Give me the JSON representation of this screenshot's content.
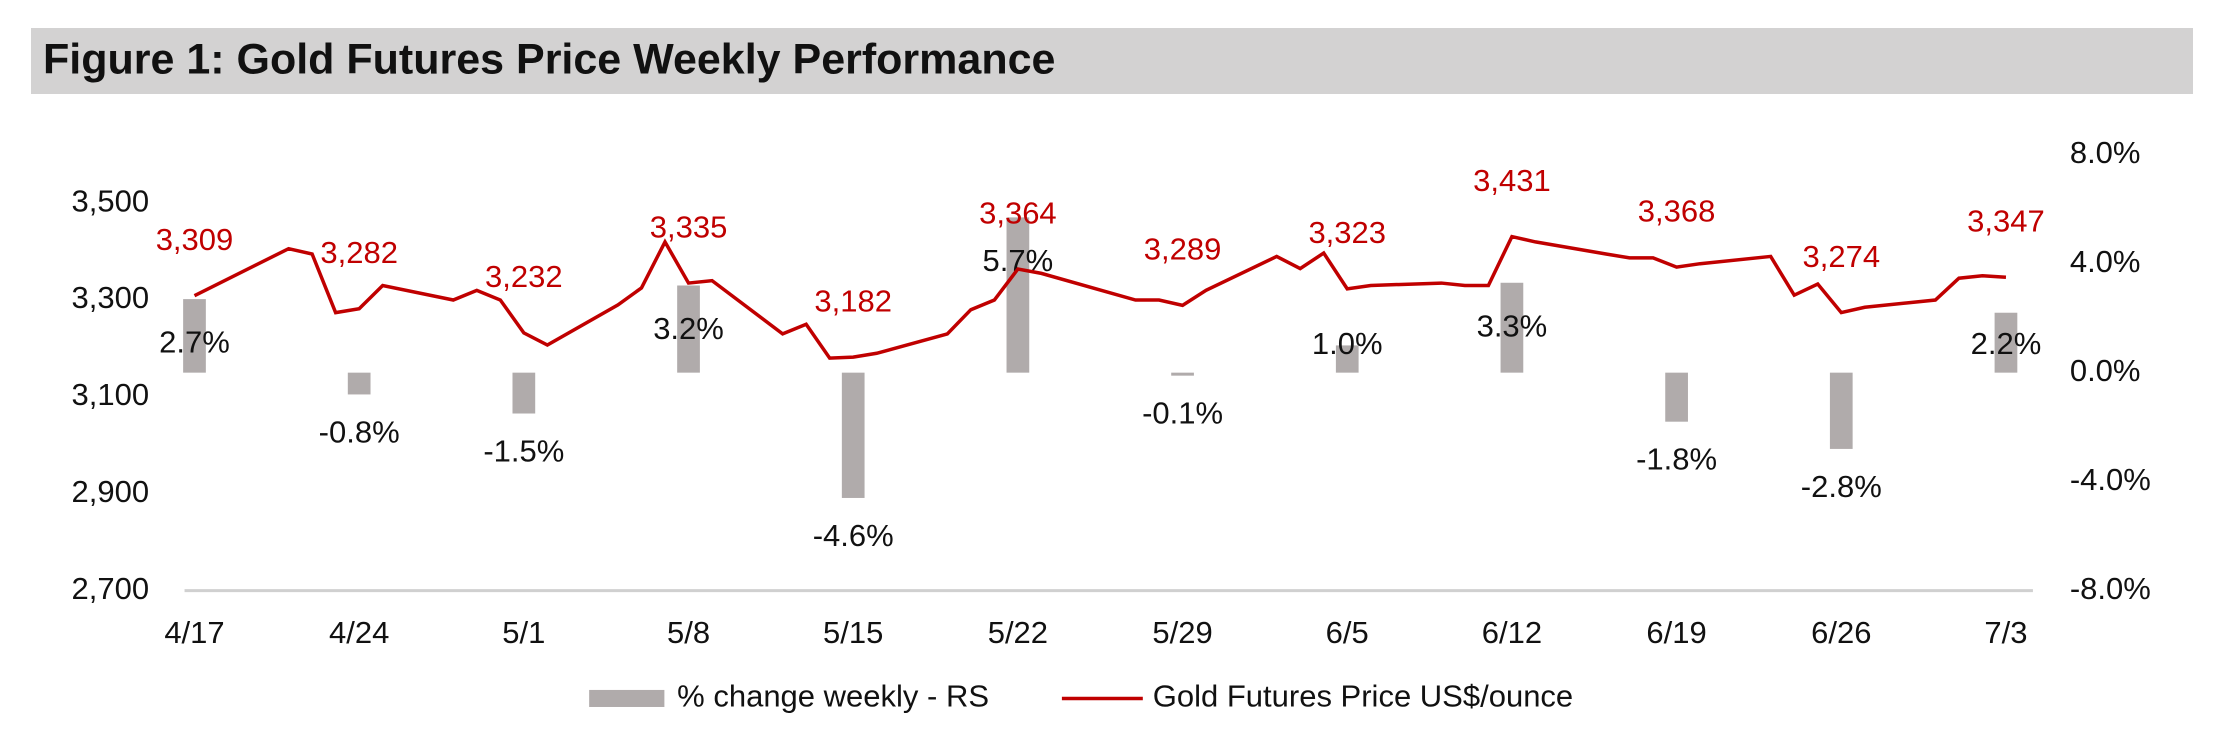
{
  "chart_data": {
    "type": "combo",
    "title": "Figure 1: Gold Futures Price Weekly Performance",
    "xticks": [
      "4/17",
      "4/24",
      "5/1",
      "5/8",
      "5/15",
      "5/22",
      "5/29",
      "6/5",
      "6/12",
      "6/19",
      "6/26",
      "7/3"
    ],
    "ylim": [
      2700,
      3600
    ],
    "yticks": [
      {
        "value": 2700,
        "label": "2,700"
      },
      {
        "value": 2900,
        "label": "2,900"
      },
      {
        "value": 3100,
        "label": "3,100"
      },
      {
        "value": 3300,
        "label": "3,300"
      },
      {
        "value": 3500,
        "label": "3,500"
      }
    ],
    "y2lim": [
      -8,
      8
    ],
    "y2ticks": [
      {
        "value": -8,
        "label": "-8.0%"
      },
      {
        "value": -4,
        "label": "-4.0%"
      },
      {
        "value": 0,
        "label": "0.0%"
      },
      {
        "value": 4,
        "label": "4.0%"
      },
      {
        "value": 8,
        "label": "8.0%"
      }
    ],
    "series": [
      {
        "name": "% change weekly - RS",
        "type": "bar",
        "axis": "y2",
        "color": "#b0abab",
        "x": [
          "4/17",
          "4/24",
          "5/1",
          "5/8",
          "5/15",
          "5/22",
          "5/29",
          "6/5",
          "6/12",
          "6/19",
          "6/26",
          "7/3"
        ],
        "values": [
          2.7,
          -0.8,
          -1.5,
          3.2,
          -4.6,
          5.7,
          -0.1,
          1.0,
          3.3,
          -1.8,
          -2.8,
          2.2
        ],
        "value_labels": [
          "2.7%",
          "-0.8%",
          "-1.5%",
          "3.2%",
          "-4.6%",
          "5.7%",
          "-0.1%",
          "1.0%",
          "3.3%",
          "-1.8%",
          "-2.8%",
          "2.2%"
        ]
      },
      {
        "name": "Gold Futures Price US$/ounce",
        "type": "line",
        "color": "#c00000",
        "x": [
          "4/17",
          "4/21",
          "4/22",
          "4/23",
          "4/24",
          "4/25",
          "4/28",
          "4/29",
          "4/30",
          "5/1",
          "5/2",
          "5/5",
          "5/6",
          "5/7",
          "5/8",
          "5/9",
          "5/12",
          "5/13",
          "5/14",
          "5/15",
          "5/16",
          "5/19",
          "5/20",
          "5/21",
          "5/22",
          "5/23",
          "5/27",
          "5/28",
          "5/29",
          "5/30",
          "6/2",
          "6/3",
          "6/4",
          "6/5",
          "6/6",
          "6/9",
          "6/10",
          "6/11",
          "6/12",
          "6/13",
          "6/16",
          "6/17",
          "6/18",
          "6/19",
          "6/20",
          "6/23",
          "6/24",
          "6/25",
          "6/26",
          "6/27",
          "6/30",
          "7/1",
          "7/2",
          "7/3"
        ],
        "values": [
          3309,
          3406,
          3395,
          3274,
          3282,
          3330,
          3300,
          3320,
          3300,
          3232,
          3207,
          3290,
          3325,
          3420,
          3335,
          3340,
          3230,
          3250,
          3180,
          3182,
          3190,
          3230,
          3280,
          3300,
          3364,
          3355,
          3300,
          3300,
          3289,
          3320,
          3390,
          3365,
          3397,
          3323,
          3330,
          3335,
          3330,
          3330,
          3431,
          3420,
          3395,
          3387,
          3387,
          3368,
          3375,
          3390,
          3310,
          3333,
          3274,
          3285,
          3300,
          3345,
          3350,
          3347
        ],
        "value_labels": [
          "3,309",
          null,
          null,
          null,
          "3,282",
          null,
          null,
          null,
          null,
          "3,232",
          null,
          null,
          null,
          null,
          "3,335",
          null,
          null,
          null,
          null,
          "3,182",
          null,
          null,
          null,
          null,
          "3,364",
          null,
          null,
          null,
          "3,289",
          null,
          null,
          null,
          null,
          "3,323",
          null,
          null,
          null,
          null,
          "3,431",
          null,
          null,
          null,
          null,
          "3,368",
          null,
          null,
          null,
          null,
          "3,274",
          null,
          null,
          null,
          null,
          "3,347"
        ]
      }
    ]
  }
}
